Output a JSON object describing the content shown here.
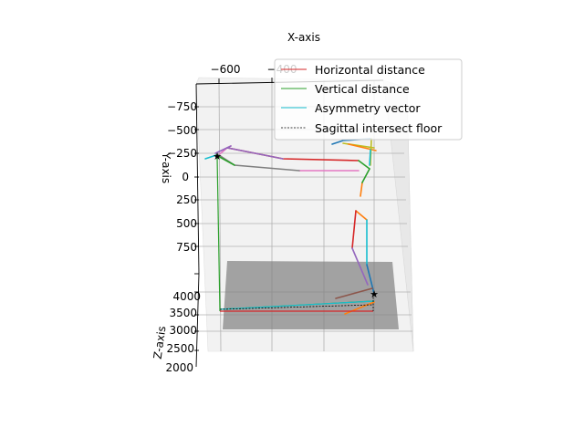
{
  "chart_data": {
    "type": "line",
    "projection": "3d",
    "title": "X-axis",
    "xlabel": "X-axis",
    "ylabel": "Y-axis",
    "zlabel": "Z-axis",
    "x_ticks": [
      "−600",
      "−400"
    ],
    "y_ticks": [
      "−750",
      "−500",
      "−250",
      "0",
      "250",
      "500",
      "750"
    ],
    "z_ticks": [
      "4000",
      "3500",
      "3000",
      "2500",
      "2000"
    ],
    "grid": true,
    "legend_position": "upper right",
    "legend": [
      {
        "label": "Horizontal distance",
        "color": "#d62728",
        "style": "solid"
      },
      {
        "label": "Vertical distance",
        "color": "#2ca02c",
        "style": "solid"
      },
      {
        "label": "Asymmetry vector",
        "color": "#17becf",
        "style": "solid"
      },
      {
        "label": "Sagittal intersect floor",
        "color": "#000000",
        "style": "dashed"
      }
    ],
    "colors": {
      "floor_plane": "#808080",
      "skeleton": [
        "#1f77b4",
        "#ff7f0e",
        "#9467bd",
        "#8c564b",
        "#e377c2",
        "#7f7f7f",
        "#bcbd22",
        "#17becf"
      ]
    }
  }
}
